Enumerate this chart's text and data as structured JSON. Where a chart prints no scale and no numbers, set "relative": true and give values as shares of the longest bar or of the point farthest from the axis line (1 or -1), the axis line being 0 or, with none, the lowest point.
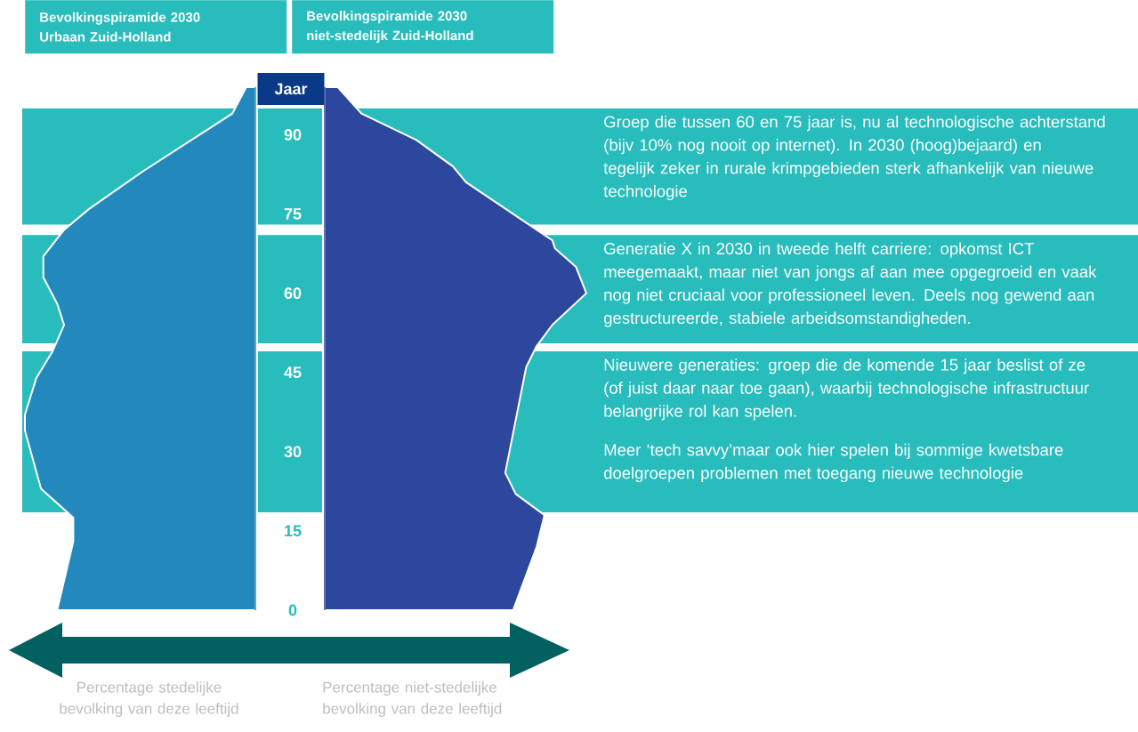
{
  "chart_data": [
    {
      "type": "area",
      "orientation": "horizontal",
      "relative": true,
      "title": "Bevolkingspiramide 2030",
      "subtitle": "Urbaan Zuid-Holland",
      "xlabel": "Percentage stedelijke bevolking van deze leeftijd",
      "color": "#2389bd",
      "tick_labels": false,
      "ylim": [
        0,
        99
      ],
      "yticks": [
        0,
        15,
        30,
        45,
        60,
        75,
        90
      ],
      "x": [
        0,
        13,
        17.5,
        23,
        34,
        37,
        44,
        49,
        54,
        58,
        63,
        67,
        72,
        76,
        83,
        94,
        99
      ],
      "values": [
        -0.86,
        -0.79,
        -0.79,
        -0.93,
        -1.0,
        -1.0,
        -0.95,
        -0.88,
        -0.83,
        -0.86,
        -0.92,
        -0.92,
        -0.83,
        -0.72,
        -0.49,
        -0.1,
        -0.04
      ]
    },
    {
      "type": "area",
      "orientation": "horizontal",
      "relative": true,
      "title": "Bevolkingspiramide 2030",
      "subtitle": "niet-stedelijk Zuid-Holland",
      "xlabel": "Percentage niet-stedelijke bevolking van deze leeftijd",
      "ylabel": "Jaar",
      "color": "#2c479c",
      "ylim": [
        0,
        99
      ],
      "yticks": [
        0,
        15,
        30,
        45,
        60,
        75,
        90
      ],
      "x": [
        0,
        12,
        18,
        22,
        26,
        46,
        50,
        54,
        60,
        65,
        68.5,
        70,
        81,
        84,
        89,
        94,
        99
      ],
      "values": [
        0.72,
        0.81,
        0.84,
        0.73,
        0.69,
        0.77,
        0.81,
        0.87,
        1.0,
        0.96,
        0.88,
        0.87,
        0.54,
        0.49,
        0.35,
        0.14,
        0.05
      ],
      "bands": [
        {
          "axis": "y",
          "from": 73,
          "to": 95,
          "color": "#29bcbc",
          "label": "Groep die tussen 60 en 75 jaar is, nu al technologische achterstand (bijv 10% nog nooit op internet). In 2030 (hoog)bejaard) en tegelijk zeker in rurale krimpgebieden sterk afhankelijk van nieuwe technologie"
        },
        {
          "axis": "y",
          "from": 50.5,
          "to": 71,
          "color": "#29bcbc",
          "label": "Generatie X in 2030 in tweede helft carriere: opkomst ICT meegemaakt, maar niet van jongs af aan mee opgegroeid en vaak nog niet cruciaal voor professioneel leven. Deels nog gewend aan gestructureerde, stabiele arbeidsomstandigheden."
        },
        {
          "axis": "y",
          "from": 18.5,
          "to": 49,
          "color": "#29bcbc",
          "label": "Nieuwere generaties: groep die de komende 15 jaar beslist of ze (of juist daar naar toe gaan), waarbij technologische infrastructuur belangrijke rol kan spelen."
        }
      ],
      "annotations": [
        "Meer ‘tech savvy’maar ook hier spelen bij sommige kwetsbare doelgroepen problemen met toegang nieuwe technologie"
      ]
    }
  ]
}
